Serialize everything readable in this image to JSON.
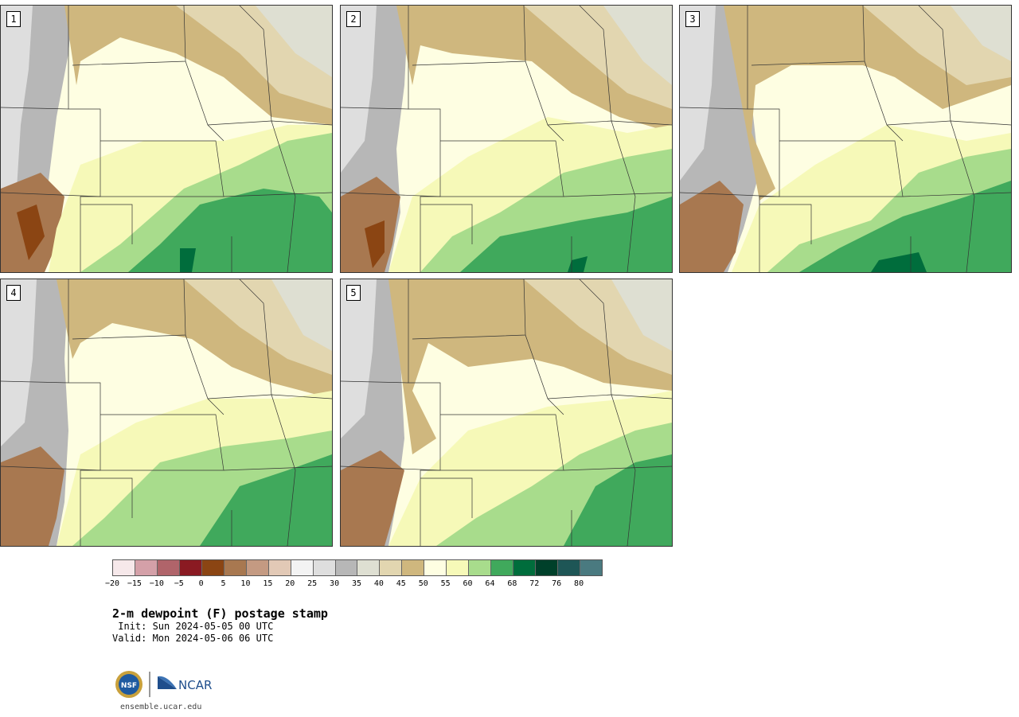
{
  "panels": [
    {
      "label": "1"
    },
    {
      "label": "2"
    },
    {
      "label": "3"
    },
    {
      "label": "4"
    },
    {
      "label": "5"
    }
  ],
  "colorbar": {
    "colors": [
      "#f6e8ea",
      "#d4a0a8",
      "#b0646a",
      "#8a1a22",
      "#8b4513",
      "#a87850",
      "#c49a82",
      "#e2c9b6",
      "#f3f3f3",
      "#dedede",
      "#b7b7b7",
      "#dedfd2",
      "#e2d6b0",
      "#cfb77e",
      "#fefee2",
      "#f6f9b8",
      "#a8dc8c",
      "#40a95c",
      "#006d3c",
      "#00402a",
      "#1e5656",
      "#4a7a80"
    ],
    "ticks": [
      "−20",
      "−15",
      "−10",
      "−5",
      "0",
      "5",
      "10",
      "15",
      "20",
      "25",
      "30",
      "35",
      "40",
      "45",
      "50",
      "55",
      "60",
      "64",
      "68",
      "72",
      "76",
      "80"
    ]
  },
  "title": "2-m dewpoint (F) postage stamp",
  "init": " Init: Sun 2024-05-05 00 UTC",
  "valid": "Valid: Mon 2024-05-06 06 UTC",
  "logo": {
    "left": "NSF",
    "right": "NCAR"
  },
  "site": "ensemble.ucar.edu"
}
